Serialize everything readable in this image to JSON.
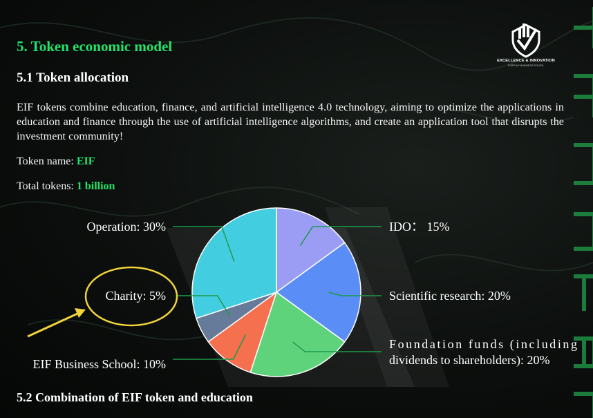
{
  "header": {
    "section_title": "5. Token economic model",
    "subsection_title": "5.1 Token allocation",
    "logo_line1": "EXCELLENCE & INNOVATION",
    "logo_line2": "FORTUNY BUSINESS SCHOOL"
  },
  "body": {
    "paragraph": "EIF tokens combine education, finance, and artificial intelligence 4.0 technology, aiming to optimize the applications in education and finance through the use of artificial intelligence algorithms, and create an application tool that disrupts the investment community!",
    "token_name_label": "Token name:",
    "token_name_value": "EIF",
    "total_tokens_label": "Total tokens:",
    "total_tokens_value": "1 billion",
    "next_section_title": "5.2 Combination of EIF token and education"
  },
  "colors": {
    "accent": "#22e36b",
    "highlight_circle": "#f2d33c"
  },
  "chart_data": {
    "type": "pie",
    "title": "",
    "start": "12 o'clock",
    "direction": "clockwise",
    "slices": [
      {
        "name": "IDO",
        "value": 15,
        "color": "#9b9df5",
        "label_lines": [
          "IDO： 15%"
        ]
      },
      {
        "name": "Scientific research",
        "value": 20,
        "color": "#5b8df6",
        "label_lines": [
          "Scientific research: 20%"
        ]
      },
      {
        "name": "Foundation funds (including dividends to shareholders)",
        "value": 20,
        "color": "#5fd37c",
        "label_lines": [
          "Foundation funds (including",
          "dividends to shareholders): 20%"
        ]
      },
      {
        "name": "EIF Business School",
        "value": 10,
        "color": "#f4704f",
        "label_lines": [
          "EIF Business School: 10%"
        ]
      },
      {
        "name": "Charity",
        "value": 5,
        "color": "#667a9a",
        "label_lines": [
          "Charity: 5%"
        ]
      },
      {
        "name": "Operation",
        "value": 30,
        "color": "#43cde0",
        "label_lines": [
          "Operation: 30%"
        ]
      }
    ],
    "highlighted": "Charity"
  }
}
